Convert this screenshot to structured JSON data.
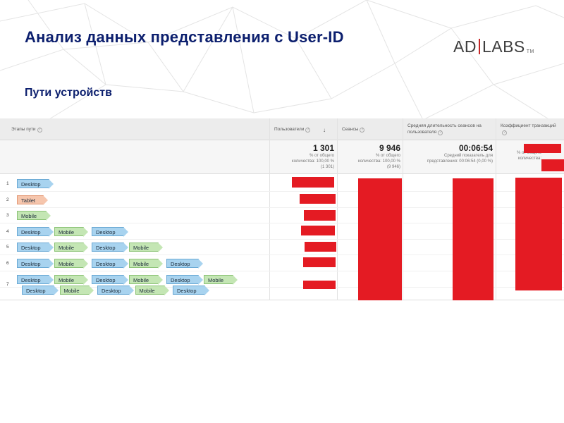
{
  "slide": {
    "title": "Анализ данных представления с User-ID",
    "subtitle": "Пути устройств"
  },
  "logo": {
    "left": "AD",
    "right": "LABS",
    "tm": "TM"
  },
  "table": {
    "headers": {
      "path": "Этапы пути",
      "users": "Пользователи",
      "sessions": "Сеансы",
      "avg_duration": "Средняя длительность сеансов на пользователя",
      "conversion": "Коэффициент транзакций"
    },
    "totals": {
      "users_value": "1 301",
      "users_note_1": "% от общего",
      "users_note_2": "количества: 100,00 %",
      "users_note_3": "(1 301)",
      "sessions_value": "9 946",
      "sessions_note_1": "% от общего",
      "sessions_note_2": "количества: 100,00 %",
      "sessions_note_3": "(9 946)",
      "duration_value": "00:06:54",
      "duration_note_1": "Средний показатель для",
      "duration_note_2": "представления: 00:06:54 (0,00 %)",
      "conversion_note_1": "% от общего",
      "conversion_note_2": "количества:"
    },
    "rows": [
      {
        "num": "1",
        "path": [
          "Desktop"
        ]
      },
      {
        "num": "2",
        "path": [
          "Tablet"
        ]
      },
      {
        "num": "3",
        "path": [
          "Mobile"
        ]
      },
      {
        "num": "4",
        "path": [
          "Desktop",
          "Mobile",
          "Desktop"
        ]
      },
      {
        "num": "5",
        "path": [
          "Desktop",
          "Mobile",
          "Desktop",
          "Mobile"
        ]
      },
      {
        "num": "6",
        "path": [
          "Desktop",
          "Mobile",
          "Desktop",
          "Mobile",
          "Desktop"
        ]
      },
      {
        "num": "7",
        "path": [
          "Desktop",
          "Mobile",
          "Desktop",
          "Mobile",
          "Desktop",
          "Mobile",
          "Desktop",
          "Mobile",
          "Desktop",
          "Mobile",
          "Desktop"
        ]
      }
    ]
  },
  "colors": {
    "title": "#0c1f6e",
    "redaction": "#e41b23",
    "desktop_chip": "#a8d3ef",
    "mobile_chip": "#c4e6b4",
    "tablet_chip": "#f6c6ad"
  }
}
